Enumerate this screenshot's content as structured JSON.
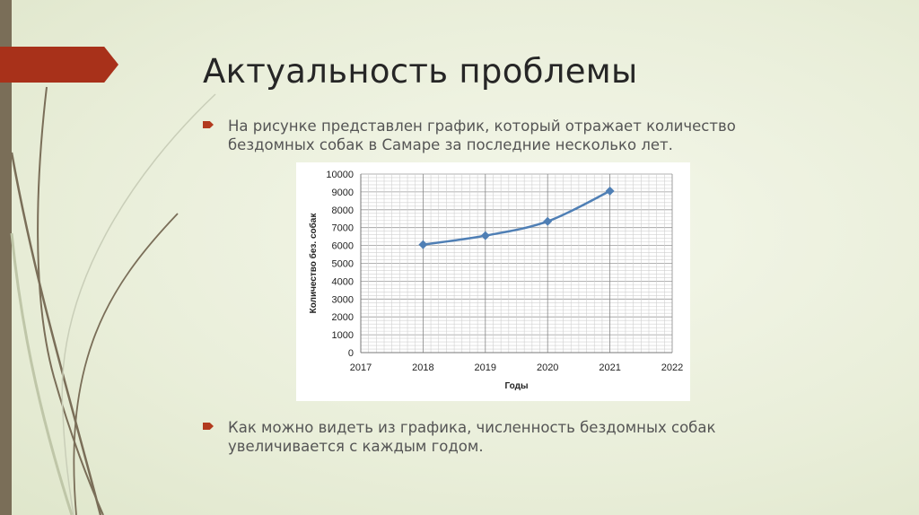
{
  "slide": {
    "title": "Актуальность проблемы",
    "bullets": [
      {
        "text": "На рисунке представлен график, который отражает количество бездомных собак в Самаре за последние несколько лет."
      },
      {
        "text": "Как можно видеть из графика, численность бездомных собак увеличивается с каждым годом."
      }
    ],
    "colors": {
      "accent": "#a8311a",
      "sidebar": "#7a6e58",
      "series": "#4f7fb5"
    }
  },
  "chart_data": {
    "type": "line",
    "title": "",
    "xlabel": "Годы",
    "ylabel": "Количество  без. собак",
    "x": [
      2018,
      2019,
      2020,
      2021
    ],
    "values": [
      6050,
      6550,
      7350,
      9050
    ],
    "xlim": [
      2017,
      2022
    ],
    "ylim": [
      0,
      10000
    ],
    "xticks": [
      "2017",
      "2018",
      "2019",
      "2020",
      "2021",
      "2022"
    ],
    "yticks": [
      "0",
      "1000",
      "2000",
      "3000",
      "4000",
      "5000",
      "6000",
      "7000",
      "8000",
      "9000",
      "10000"
    ],
    "grid": true,
    "marker": "diamond",
    "smooth": true
  }
}
